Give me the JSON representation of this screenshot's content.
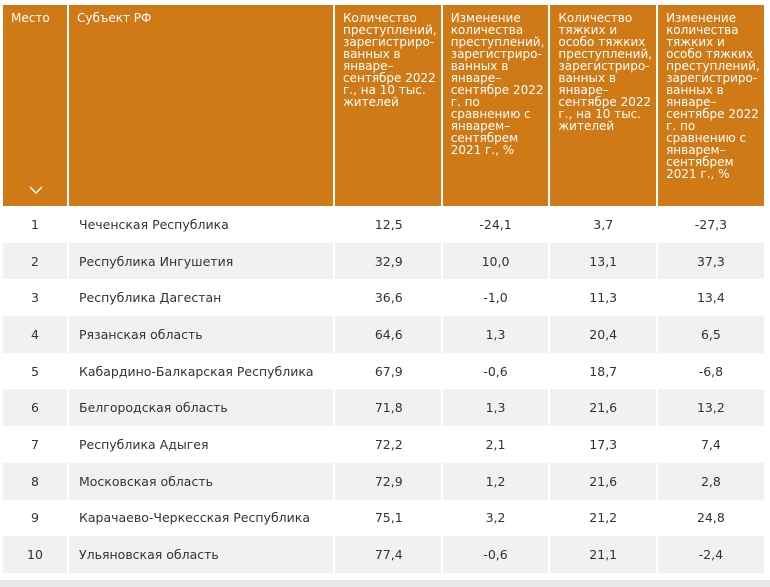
{
  "table": {
    "headers": {
      "place": "Место",
      "region": "Субъект РФ",
      "crimes_per_10k": "Количество преступлений, зарегистриро-ванных в январе–сентябре 2022 г., на 10 тыс. жителей",
      "crimes_change": "Изменение количества преступлений, зарегистриро-ванных в январе–сентябре 2022 г. по сравнению с январем–сентябрем 2021 г., %",
      "grave_per_10k": "Количество тяжких и особо тяжких преступлений, зарегистриро-ванных в январе–сентябре 2022 г., на 10 тыс. жителей",
      "grave_change": "Изменение количества тяжких и особо тяжких преступлений, зарегистриро-ванных в январе–сентябре 2022 г. по сравнению с январем–сентябрем 2021 г., %"
    },
    "rows": [
      {
        "place": "1",
        "region": "Чеченская Республика",
        "v1": "12,5",
        "v2": "-24,1",
        "v3": "3,7",
        "v4": "-27,3"
      },
      {
        "place": "2",
        "region": "Республика Ингушетия",
        "v1": "32,9",
        "v2": "10,0",
        "v3": "13,1",
        "v4": "37,3"
      },
      {
        "place": "3",
        "region": "Республика Дагестан",
        "v1": "36,6",
        "v2": "-1,0",
        "v3": "11,3",
        "v4": "13,4"
      },
      {
        "place": "4",
        "region": "Рязанская область",
        "v1": "64,6",
        "v2": "1,3",
        "v3": "20,4",
        "v4": "6,5"
      },
      {
        "place": "5",
        "region": "Кабардино-Балкарская Республика",
        "v1": "67,9",
        "v2": "-0,6",
        "v3": "18,7",
        "v4": "-6,8"
      },
      {
        "place": "6",
        "region": "Белгородская область",
        "v1": "71,8",
        "v2": "1,3",
        "v3": "21,6",
        "v4": "13,2"
      },
      {
        "place": "7",
        "region": "Республика Адыгея",
        "v1": "72,2",
        "v2": "2,1",
        "v3": "17,3",
        "v4": "7,4"
      },
      {
        "place": "8",
        "region": "Московская область",
        "v1": "72,9",
        "v2": "1,2",
        "v3": "21,6",
        "v4": "2,8"
      },
      {
        "place": "9",
        "region": "Карачаево-Черкесская Республика",
        "v1": "75,1",
        "v2": "3,2",
        "v3": "21,2",
        "v4": "24,8"
      },
      {
        "place": "10",
        "region": "Ульяновская область",
        "v1": "77,4",
        "v2": "-0,6",
        "v3": "21,1",
        "v4": "-2,4"
      }
    ]
  },
  "icons": {
    "sort": "chevron-down-icon"
  },
  "colors": {
    "header_bg": "#d07a17",
    "header_text": "#ffffff",
    "row_alt": "#f1f1f1"
  }
}
